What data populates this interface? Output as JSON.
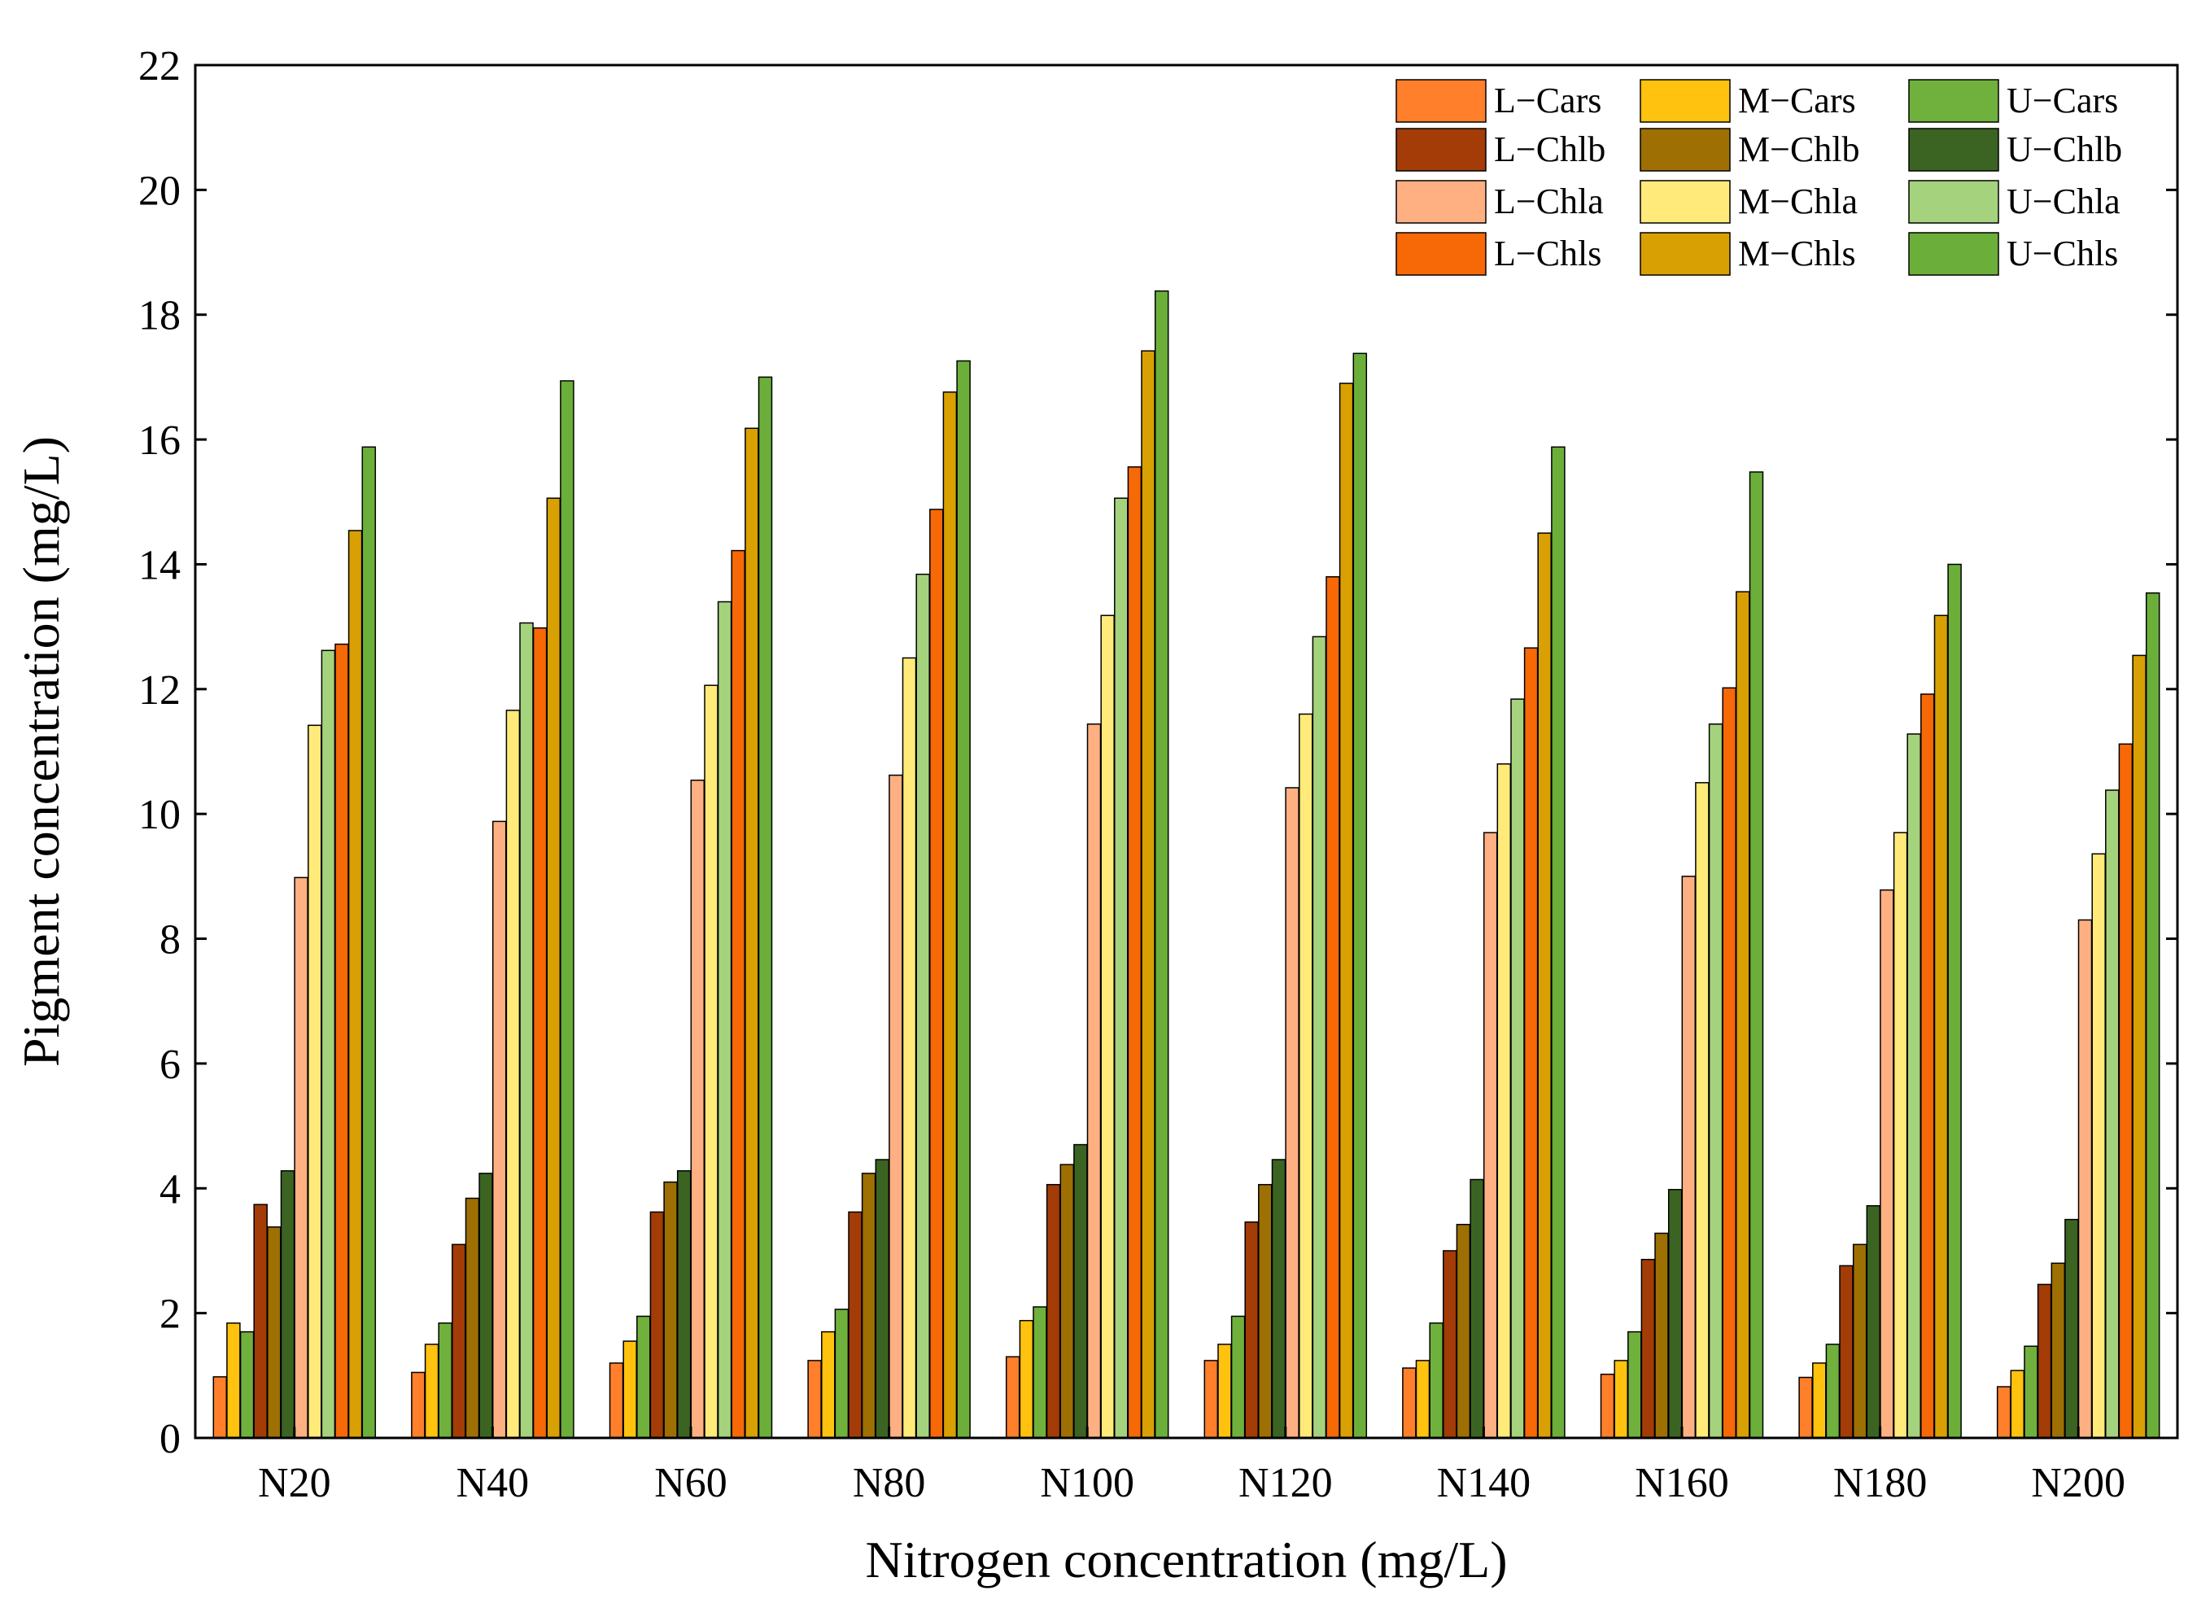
{
  "chart_data": {
    "type": "bar",
    "title": "",
    "xlabel": "Nitrogen concentration (mg/L)",
    "ylabel": "Pigment concentration (mg/L)",
    "ylim": [
      0,
      22
    ],
    "yticks": [
      "0",
      "2",
      "4",
      "6",
      "8",
      "10",
      "12",
      "14",
      "16",
      "18",
      "20",
      "22"
    ],
    "grid": false,
    "legend_position": "top-right",
    "categories": [
      "N20",
      "N40",
      "N60",
      "N80",
      "N100",
      "N120",
      "N140",
      "N160",
      "N180",
      "N200"
    ],
    "series": [
      {
        "name": "L−Cars",
        "color": "#FF7F2A",
        "values": [
          0.98,
          1.05,
          1.2,
          1.24,
          1.3,
          1.24,
          1.12,
          1.02,
          0.97,
          0.82
        ]
      },
      {
        "name": "M−Cars",
        "color": "#FFC20E",
        "values": [
          1.84,
          1.5,
          1.55,
          1.7,
          1.88,
          1.5,
          1.24,
          1.24,
          1.2,
          1.08
        ]
      },
      {
        "name": "U−Cars",
        "color": "#70B03C",
        "values": [
          1.7,
          1.84,
          1.95,
          2.06,
          2.1,
          1.95,
          1.84,
          1.7,
          1.5,
          1.47
        ]
      },
      {
        "name": "L−Chlb",
        "color": "#A33C06",
        "values": [
          3.74,
          3.1,
          3.62,
          3.62,
          4.06,
          3.46,
          3.0,
          2.86,
          2.76,
          2.46
        ]
      },
      {
        "name": "M−Chlb",
        "color": "#9E6F02",
        "values": [
          3.38,
          3.84,
          4.1,
          4.24,
          4.38,
          4.06,
          3.42,
          3.28,
          3.1,
          2.8
        ]
      },
      {
        "name": "U−Chlb",
        "color": "#3B6423",
        "values": [
          4.28,
          4.24,
          4.28,
          4.46,
          4.7,
          4.46,
          4.14,
          3.98,
          3.72,
          3.5
        ]
      },
      {
        "name": "L−Chla",
        "color": "#FFB083",
        "values": [
          8.98,
          9.88,
          10.54,
          10.62,
          11.44,
          10.42,
          9.7,
          9.0,
          8.78,
          8.3
        ]
      },
      {
        "name": "M−Chla",
        "color": "#FFEA7A",
        "values": [
          11.42,
          11.66,
          12.06,
          12.5,
          13.18,
          11.6,
          10.8,
          10.5,
          9.7,
          9.36
        ]
      },
      {
        "name": "U−Chla",
        "color": "#A5D37D",
        "values": [
          12.62,
          13.06,
          13.4,
          13.84,
          15.06,
          12.84,
          11.84,
          11.44,
          11.28,
          10.38
        ]
      },
      {
        "name": "L−Chls",
        "color": "#F76806",
        "values": [
          12.72,
          12.98,
          14.22,
          14.88,
          15.56,
          13.8,
          12.66,
          12.02,
          11.92,
          11.12
        ]
      },
      {
        "name": "M−Chls",
        "color": "#D9A003",
        "values": [
          14.54,
          15.06,
          16.18,
          16.76,
          17.42,
          16.9,
          14.5,
          13.56,
          13.18,
          12.54
        ]
      },
      {
        "name": "U−Chls",
        "color": "#6CAE3A",
        "values": [
          15.88,
          16.94,
          17.0,
          17.26,
          18.38,
          17.38,
          15.88,
          15.48,
          14.0,
          13.54
        ]
      }
    ]
  }
}
